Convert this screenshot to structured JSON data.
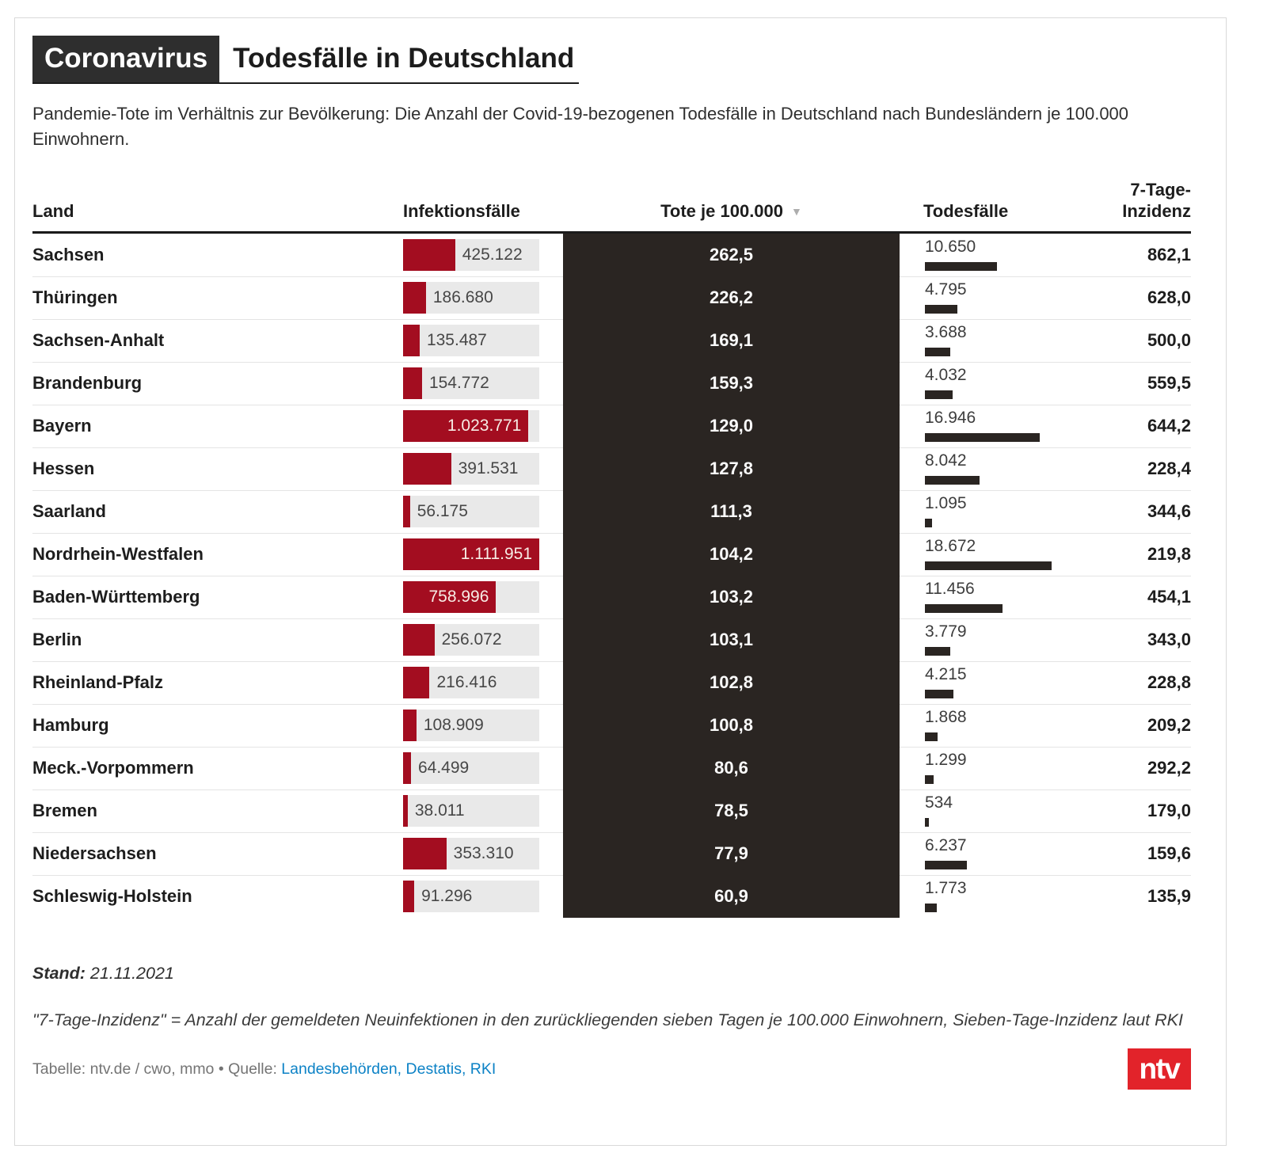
{
  "header": {
    "kicker": "Coronavirus",
    "title": "Todesfälle in Deutschland",
    "subtitle": "Pandemie-Tote im Verhältnis zur Bevölkerung: Die Anzahl der Covid-19-bezogenen Todesfälle in Deutschland nach Bundesländern je 100.000 Einwohnern."
  },
  "table": {
    "columns": {
      "land": "Land",
      "infections": "Infektionsfälle",
      "tote_je_100k": "Tote je 100.000",
      "sort_icon": "▼",
      "todesfaelle": "Todesfälle",
      "inzidenz": "7-Tage-\nInzidenz"
    },
    "rows": [
      {
        "land": "Sachsen",
        "infections": "425.122",
        "infections_n": 425122,
        "tote_je_100k": "262,5",
        "todesfaelle": "10.650",
        "todesfaelle_n": 10650,
        "inzidenz": "862,1"
      },
      {
        "land": "Thüringen",
        "infections": "186.680",
        "infections_n": 186680,
        "tote_je_100k": "226,2",
        "todesfaelle": "4.795",
        "todesfaelle_n": 4795,
        "inzidenz": "628,0"
      },
      {
        "land": "Sachsen-Anhalt",
        "infections": "135.487",
        "infections_n": 135487,
        "tote_je_100k": "169,1",
        "todesfaelle": "3.688",
        "todesfaelle_n": 3688,
        "inzidenz": "500,0"
      },
      {
        "land": "Brandenburg",
        "infections": "154.772",
        "infections_n": 154772,
        "tote_je_100k": "159,3",
        "todesfaelle": "4.032",
        "todesfaelle_n": 4032,
        "inzidenz": "559,5"
      },
      {
        "land": "Bayern",
        "infections": "1.023.771",
        "infections_n": 1023771,
        "tote_je_100k": "129,0",
        "todesfaelle": "16.946",
        "todesfaelle_n": 16946,
        "inzidenz": "644,2"
      },
      {
        "land": "Hessen",
        "infections": "391.531",
        "infections_n": 391531,
        "tote_je_100k": "127,8",
        "todesfaelle": "8.042",
        "todesfaelle_n": 8042,
        "inzidenz": "228,4"
      },
      {
        "land": "Saarland",
        "infections": "56.175",
        "infections_n": 56175,
        "tote_je_100k": "111,3",
        "todesfaelle": "1.095",
        "todesfaelle_n": 1095,
        "inzidenz": "344,6"
      },
      {
        "land": "Nordrhein-Westfalen",
        "infections": "1.111.951",
        "infections_n": 1111951,
        "tote_je_100k": "104,2",
        "todesfaelle": "18.672",
        "todesfaelle_n": 18672,
        "inzidenz": "219,8"
      },
      {
        "land": "Baden-Württemberg",
        "infections": "758.996",
        "infections_n": 758996,
        "tote_je_100k": "103,2",
        "todesfaelle": "11.456",
        "todesfaelle_n": 11456,
        "inzidenz": "454,1"
      },
      {
        "land": "Berlin",
        "infections": "256.072",
        "infections_n": 256072,
        "tote_je_100k": "103,1",
        "todesfaelle": "3.779",
        "todesfaelle_n": 3779,
        "inzidenz": "343,0"
      },
      {
        "land": "Rheinland-Pfalz",
        "infections": "216.416",
        "infections_n": 216416,
        "tote_je_100k": "102,8",
        "todesfaelle": "4.215",
        "todesfaelle_n": 4215,
        "inzidenz": "228,8"
      },
      {
        "land": "Hamburg",
        "infections": "108.909",
        "infections_n": 108909,
        "tote_je_100k": "100,8",
        "todesfaelle": "1.868",
        "todesfaelle_n": 1868,
        "inzidenz": "209,2"
      },
      {
        "land": "Meck.-Vorpommern",
        "infections": "64.499",
        "infections_n": 64499,
        "tote_je_100k": "80,6",
        "todesfaelle": "1.299",
        "todesfaelle_n": 1299,
        "inzidenz": "292,2"
      },
      {
        "land": "Bremen",
        "infections": "38.011",
        "infections_n": 38011,
        "tote_je_100k": "78,5",
        "todesfaelle": "534",
        "todesfaelle_n": 534,
        "inzidenz": "179,0"
      },
      {
        "land": "Niedersachsen",
        "infections": "353.310",
        "infections_n": 353310,
        "tote_je_100k": "77,9",
        "todesfaelle": "6.237",
        "todesfaelle_n": 6237,
        "inzidenz": "159,6"
      },
      {
        "land": "Schleswig-Holstein",
        "infections": "91.296",
        "infections_n": 91296,
        "tote_je_100k": "60,9",
        "todesfaelle": "1.773",
        "todesfaelle_n": 1773,
        "inzidenz": "135,9"
      }
    ]
  },
  "chart_data": {
    "type": "table",
    "title": "Coronavirus — Todesfälle in Deutschland",
    "subtitle": "Covid-19-bezogene Todesfälle in Deutschland nach Bundesländern je 100.000 Einwohner",
    "categories": [
      "Sachsen",
      "Thüringen",
      "Sachsen-Anhalt",
      "Brandenburg",
      "Bayern",
      "Hessen",
      "Saarland",
      "Nordrhein-Westfalen",
      "Baden-Württemberg",
      "Berlin",
      "Rheinland-Pfalz",
      "Hamburg",
      "Meck.-Vorpommern",
      "Bremen",
      "Niedersachsen",
      "Schleswig-Holstein"
    ],
    "series": [
      {
        "name": "Infektionsfälle",
        "type": "bar",
        "values": [
          425122,
          186680,
          135487,
          154772,
          1023771,
          391531,
          56175,
          1111951,
          758996,
          256072,
          216416,
          108909,
          64499,
          38011,
          353310,
          91296
        ]
      },
      {
        "name": "Tote je 100.000",
        "type": "table",
        "values": [
          262.5,
          226.2,
          169.1,
          159.3,
          129.0,
          127.8,
          111.3,
          104.2,
          103.2,
          103.1,
          102.8,
          100.8,
          80.6,
          78.5,
          77.9,
          60.9
        ]
      },
      {
        "name": "Todesfälle",
        "type": "bar",
        "values": [
          10650,
          4795,
          3688,
          4032,
          16946,
          8042,
          1095,
          18672,
          11456,
          3779,
          4215,
          1868,
          1299,
          534,
          6237,
          1773
        ]
      },
      {
        "name": "7-Tage-Inzidenz",
        "type": "table",
        "values": [
          862.1,
          628.0,
          500.0,
          559.5,
          644.2,
          228.4,
          344.6,
          219.8,
          454.1,
          343.0,
          228.8,
          209.2,
          292.2,
          179.0,
          159.6,
          135.9
        ]
      }
    ],
    "sort_column": "Tote je 100.000",
    "sort_direction": "desc",
    "legend_position": "none",
    "grid": false
  },
  "footer": {
    "stand_label": "Stand:",
    "stand_value": "21.11.2021",
    "note": "\"7-Tage-Inzidenz\" = Anzahl der gemeldeten Neuinfektionen in den zurückliegenden sieben Tagen je 100.000 Einwohnern, Sieben-Tage-Inzidenz laut RKI",
    "credit_prefix": "Tabelle: ntv.de / cwo, mmo",
    "credit_separator": "•",
    "credit_source_label": "Quelle:",
    "credit_source_links": "Landesbehörden, Destatis, RKI",
    "logo_text": "ntv"
  },
  "colors": {
    "bar_red": "#a30d20",
    "dark": "#2a2522",
    "track_gray": "#e9e9e9",
    "logo_red": "#e2232a",
    "link_blue": "#0c82c6"
  }
}
